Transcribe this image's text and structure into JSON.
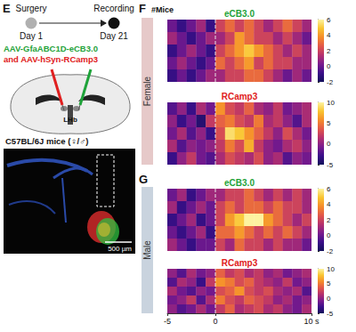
{
  "panel_labels": [
    "E",
    "F",
    "G"
  ],
  "schematic": {
    "timeline": [
      {
        "event": "Surgery",
        "day": "Day 1"
      },
      {
        "event": "Recording",
        "day": "Day 21"
      }
    ],
    "viruses": [
      {
        "text": "AAV-GfaABC1D-eCB3.0",
        "color": "#1fa33a"
      },
      {
        "text": "and AAV-hSyn-RCamp3",
        "color": "#e02020"
      }
    ],
    "region": "LHb",
    "mice": "C57BL/6J mice (♀/♂)",
    "scale_bar": "500 µm"
  },
  "y_label": "#Mice",
  "chart_data": [
    {
      "type": "heatmap",
      "group": "Female",
      "title": "eCB3.0",
      "color": "#1fa33a",
      "bins": [
        -5,
        -4,
        -3,
        -2,
        -1,
        0,
        1,
        2,
        3,
        4,
        5,
        6,
        7,
        8,
        9,
        10
      ],
      "xlim": [
        -5,
        10
      ],
      "event_x": 0,
      "tick_labels": false,
      "cells": [
        [
          0,
          -1,
          0,
          1,
          -1,
          2,
          3,
          2,
          3,
          2,
          1,
          2,
          3,
          2,
          1
        ],
        [
          1,
          0,
          -1,
          0,
          1,
          1,
          2,
          4,
          3,
          2,
          2,
          1,
          2,
          1,
          0
        ],
        [
          -1,
          0,
          1,
          0,
          -1,
          2,
          3,
          4,
          5,
          4,
          3,
          2,
          1,
          2,
          1
        ],
        [
          0,
          1,
          0,
          -1,
          0,
          3,
          2,
          3,
          4,
          2,
          3,
          2,
          2,
          1,
          1
        ],
        [
          -1,
          0,
          -1,
          0,
          1,
          1,
          2,
          2,
          3,
          3,
          2,
          1,
          0,
          1,
          0
        ]
      ],
      "colorbar": {
        "range": [
          -2,
          6
        ],
        "ticks": [
          -2,
          0,
          2,
          4,
          6
        ]
      }
    },
    {
      "type": "heatmap",
      "group": "Female",
      "title": "RCamp3",
      "color": "#e02020",
      "bins": [
        -5,
        -4,
        -3,
        -2,
        -1,
        0,
        1,
        2,
        3,
        4,
        5,
        6,
        7,
        8,
        9,
        10
      ],
      "xlim": [
        -5,
        10
      ],
      "event_x": 0,
      "tick_labels": false,
      "cells": [
        [
          -2,
          0,
          -3,
          1,
          -1,
          6,
          3,
          2,
          4,
          1,
          0,
          2,
          -1,
          0,
          1
        ],
        [
          0,
          -3,
          -1,
          -4,
          2,
          4,
          5,
          3,
          2,
          5,
          1,
          2,
          0,
          -2,
          1
        ],
        [
          -1,
          1,
          -2,
          0,
          -3,
          3,
          9,
          8,
          6,
          4,
          2,
          0,
          3,
          1,
          -1
        ],
        [
          1,
          -2,
          0,
          -1,
          0,
          2,
          5,
          3,
          7,
          2,
          0,
          -1,
          1,
          2,
          0
        ],
        [
          -3,
          0,
          2,
          -1,
          -2,
          1,
          3,
          2,
          1,
          3,
          0,
          1,
          -2,
          0,
          -1
        ]
      ],
      "colorbar": {
        "range": [
          -5,
          10
        ],
        "ticks": [
          -5,
          0,
          5,
          10
        ]
      }
    },
    {
      "type": "heatmap",
      "group": "Male",
      "title": "eCB3.0",
      "color": "#1fa33a",
      "bins": [
        -5,
        -4,
        -3,
        -2,
        -1,
        0,
        1,
        2,
        3,
        4,
        5,
        6,
        7,
        8,
        9,
        10
      ],
      "xlim": [
        -5,
        10
      ],
      "event_x": 0,
      "tick_labels": false,
      "cells": [
        [
          0,
          1,
          -1,
          0,
          1,
          1,
          2,
          2,
          3,
          2,
          1,
          2,
          1,
          2,
          1
        ],
        [
          1,
          -1,
          0,
          1,
          0,
          2,
          3,
          2,
          3,
          3,
          2,
          3,
          2,
          2,
          1
        ],
        [
          -1,
          0,
          1,
          -1,
          0,
          2,
          4,
          5,
          6,
          6,
          4,
          3,
          2,
          1,
          2
        ],
        [
          0,
          -1,
          0,
          1,
          -1,
          3,
          3,
          4,
          3,
          2,
          3,
          2,
          3,
          2,
          1
        ],
        [
          1,
          0,
          -1,
          0,
          0,
          2,
          1,
          3,
          2,
          2,
          1,
          2,
          1,
          1,
          0
        ]
      ],
      "colorbar": {
        "range": [
          -2,
          6
        ],
        "ticks": [
          -2,
          0,
          2,
          4,
          6
        ]
      }
    },
    {
      "type": "heatmap",
      "group": "Male",
      "title": "RCamp3",
      "color": "#e02020",
      "bins": [
        -5,
        -4,
        -3,
        -2,
        -1,
        0,
        1,
        2,
        3,
        4,
        5,
        6,
        7,
        8,
        9,
        10
      ],
      "xlim": [
        -5,
        10
      ],
      "event_x": 0,
      "tick_labels": "x",
      "xticks": [
        -5,
        0,
        {
          "value": 10,
          "label": "10 s"
        }
      ],
      "cells": [
        [
          0,
          -2,
          1,
          -1,
          0,
          4,
          2,
          3,
          1,
          2,
          0,
          1,
          -1,
          0,
          1
        ],
        [
          -2,
          1,
          0,
          -3,
          2,
          6,
          5,
          3,
          4,
          2,
          1,
          0,
          2,
          -1,
          0
        ],
        [
          1,
          -1,
          -2,
          0,
          -1,
          3,
          4,
          6,
          3,
          2,
          3,
          1,
          0,
          1,
          -2
        ],
        [
          -1,
          0,
          2,
          -2,
          1,
          5,
          3,
          2,
          4,
          3,
          2,
          0,
          1,
          -1,
          0
        ],
        [
          0,
          -2,
          -1,
          1,
          -1,
          2,
          4,
          1,
          2,
          3,
          1,
          2,
          0,
          -1,
          1
        ]
      ],
      "colorbar": {
        "range": [
          -5,
          10
        ],
        "ticks": [
          -5,
          0,
          5,
          10
        ]
      }
    }
  ]
}
